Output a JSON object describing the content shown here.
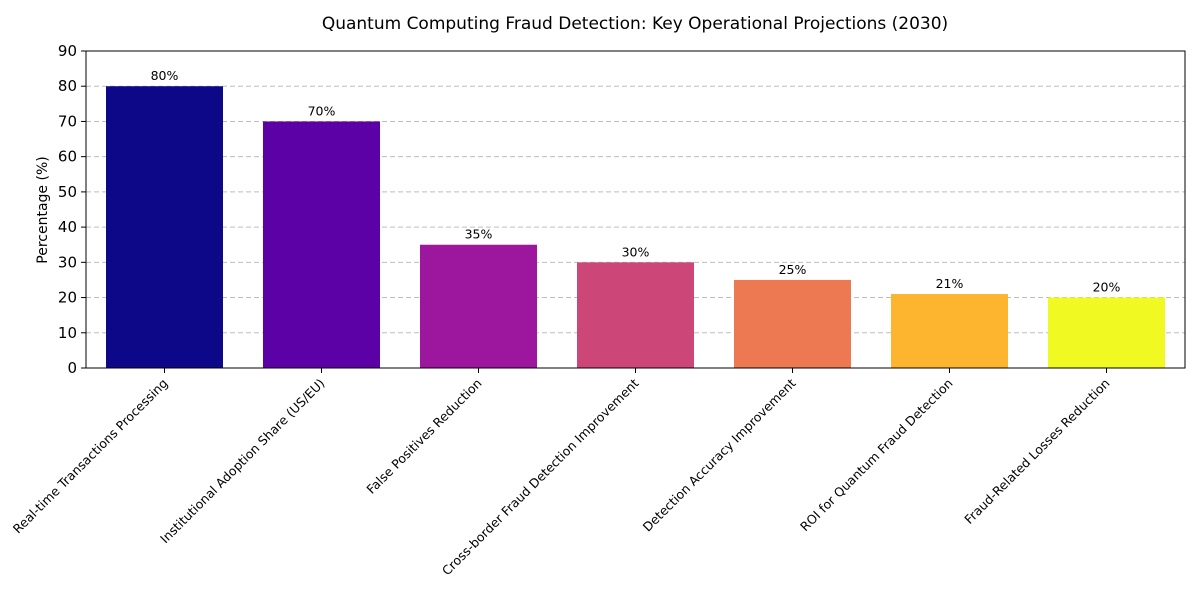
{
  "chart_data": {
    "type": "bar",
    "title": "Quantum Computing Fraud Detection: Key Operational Projections (2030)",
    "xlabel": "",
    "ylabel": "Percentage (%)",
    "ylim": [
      0,
      90
    ],
    "yticks": [
      0,
      10,
      20,
      30,
      40,
      50,
      60,
      70,
      80,
      90
    ],
    "grid": true,
    "categories": [
      "Real-time Transactions Processing",
      "Institutional Adoption Share (US/EU)",
      "False Positives Reduction",
      "Cross-border Fraud Detection Improvement",
      "Detection Accuracy Improvement",
      "ROI for Quantum Fraud Detection",
      "Fraud-Related Losses Reduction"
    ],
    "values": [
      80,
      70,
      35,
      30,
      25,
      21,
      20
    ],
    "data_labels": [
      "80%",
      "70%",
      "35%",
      "30%",
      "25%",
      "21%",
      "20%"
    ],
    "colors": [
      "#0d0887",
      "#5c01a6",
      "#9c179e",
      "#cc4778",
      "#ed7953",
      "#fdb42f",
      "#f0f921"
    ]
  }
}
